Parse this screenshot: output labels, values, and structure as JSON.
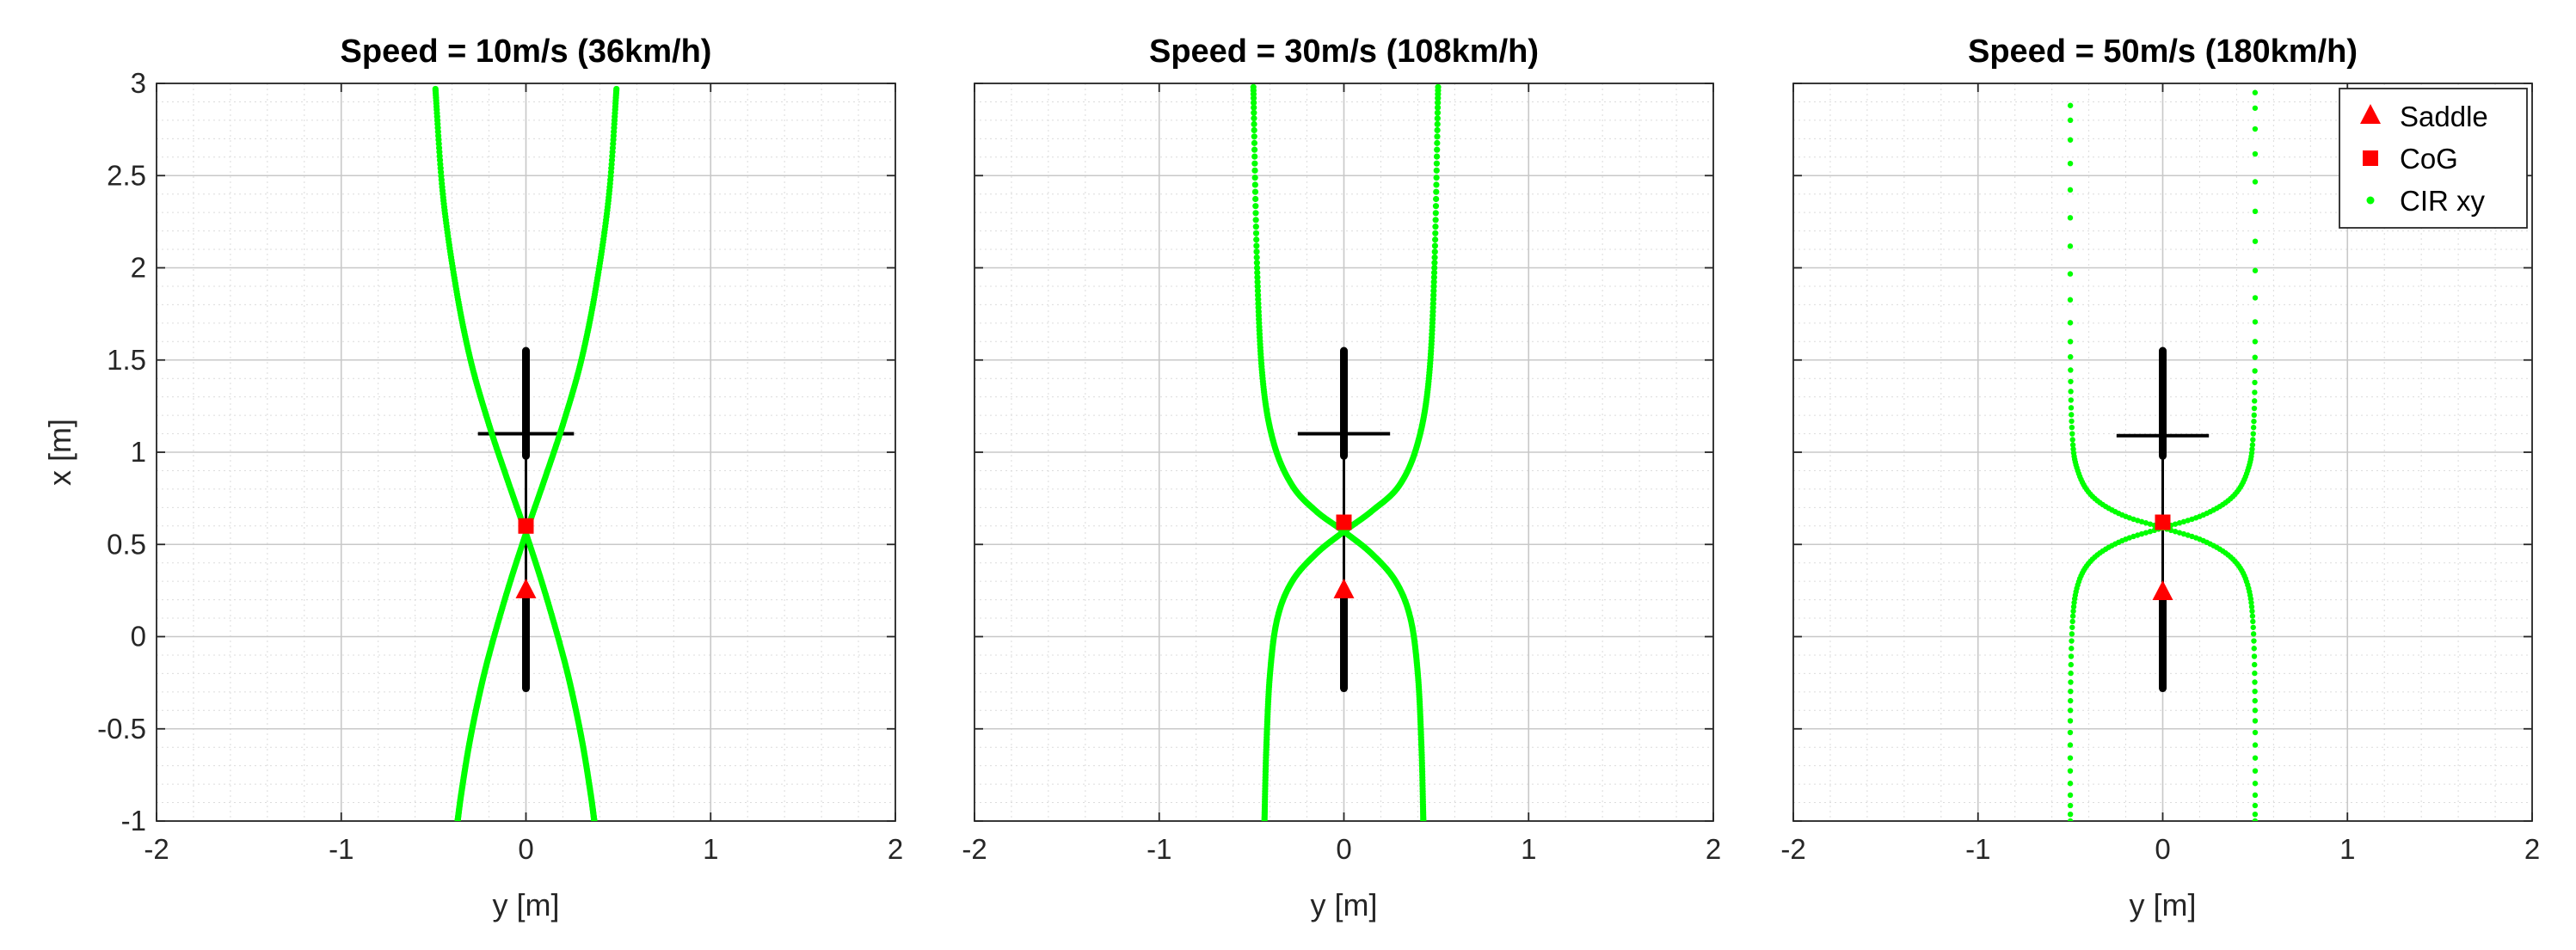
{
  "chart_data": [
    {
      "type": "scatter",
      "title": "Speed = 10m/s (36km/h)",
      "xlabel": "y [m]",
      "ylabel": "x [m]",
      "xlim": [
        -2,
        2
      ],
      "ylim": [
        -1,
        3
      ],
      "xticks": [
        "-2",
        "-1",
        "0",
        "1",
        "2"
      ],
      "yticks": [
        "-1",
        "-0.5",
        "0",
        "0.5",
        "1",
        "1.5",
        "2",
        "2.5",
        "3"
      ],
      "grid": true,
      "minor_grid": true,
      "vehicle": {
        "axis_y": 0,
        "axis_x_range": [
          -0.28,
          1.55
        ],
        "cross_x": 1.1,
        "cross_y_range": [
          -0.26,
          0.26
        ]
      },
      "saddle": {
        "y": 0,
        "x": 0.25
      },
      "cog": {
        "y": 0,
        "x": 0.6
      },
      "cir": {
        "name": "CIR xy",
        "intersection": {
          "y": 0,
          "x": 0.56
        },
        "branches": [
          {
            "y": [
              -0.49,
              -0.45,
              -0.38,
              -0.3,
              -0.2,
              -0.1,
              0,
              0.1,
              0.2,
              0.26,
              0.31,
              0.35,
              0.37
            ],
            "x": [
              2.97,
              2.4,
              1.9,
              1.5,
              1.15,
              0.85,
              0.56,
              0.25,
              -0.1,
              -0.35,
              -0.6,
              -0.85,
              -1.0
            ]
          },
          {
            "y": [
              0.49,
              0.45,
              0.38,
              0.3,
              0.2,
              0.1,
              0,
              -0.1,
              -0.2,
              -0.26,
              -0.31,
              -0.35,
              -0.37
            ],
            "x": [
              2.97,
              2.4,
              1.9,
              1.5,
              1.15,
              0.85,
              0.56,
              0.25,
              -0.1,
              -0.35,
              -0.6,
              -0.85,
              -1.0
            ]
          }
        ]
      }
    },
    {
      "type": "scatter",
      "title": "Speed = 30m/s (108km/h)",
      "xlabel": "y [m]",
      "ylabel": "",
      "xlim": [
        -2,
        2
      ],
      "ylim": [
        -1,
        3
      ],
      "xticks": [
        "-2",
        "-1",
        "0",
        "1",
        "2"
      ],
      "yticks": [],
      "grid": true,
      "minor_grid": true,
      "vehicle": {
        "axis_y": 0,
        "axis_x_range": [
          -0.28,
          1.55
        ],
        "cross_x": 1.1,
        "cross_y_range": [
          -0.25,
          0.25
        ]
      },
      "saddle": {
        "y": 0,
        "x": 0.25
      },
      "cog": {
        "y": 0,
        "x": 0.62
      },
      "cir": {
        "name": "CIR xy",
        "intersection": {
          "y": 0,
          "x": 0.57
        },
        "branches": [
          {
            "y": [
              -0.49,
              -0.47,
              -0.44,
              -0.38,
              -0.28,
              -0.15,
              0,
              0.15,
              0.28,
              0.36,
              0.4,
              0.42,
              0.43
            ],
            "x": [
              2.98,
              2.0,
              1.4,
              1.05,
              0.82,
              0.68,
              0.57,
              0.45,
              0.3,
              0.1,
              -0.2,
              -0.6,
              -1.0
            ]
          },
          {
            "y": [
              0.51,
              0.49,
              0.46,
              0.4,
              0.3,
              0.15,
              0,
              -0.15,
              -0.28,
              -0.36,
              -0.4,
              -0.42,
              -0.43
            ],
            "x": [
              2.98,
              2.0,
              1.4,
              1.05,
              0.82,
              0.68,
              0.57,
              0.45,
              0.3,
              0.1,
              -0.2,
              -0.6,
              -1.0
            ]
          }
        ]
      }
    },
    {
      "type": "scatter",
      "title": "Speed = 50m/s (180km/h)",
      "xlabel": "y [m]",
      "ylabel": "",
      "xlim": [
        -2,
        2
      ],
      "ylim": [
        -1,
        3
      ],
      "xticks": [
        "-2",
        "-1",
        "0",
        "1",
        "2"
      ],
      "yticks": [],
      "grid": true,
      "minor_grid": true,
      "legend": {
        "placement": "top-right",
        "entries": [
          {
            "label": "Saddle",
            "marker": "triangle",
            "color": "#ff0000"
          },
          {
            "label": "CoG",
            "marker": "square",
            "color": "#ff0000"
          },
          {
            "label": "CIR xy",
            "marker": "dot",
            "color": "#00ff00"
          }
        ]
      },
      "vehicle": {
        "axis_y": 0,
        "axis_x_range": [
          -0.28,
          1.55
        ],
        "cross_x": 1.09,
        "cross_y_range": [
          -0.25,
          0.25
        ]
      },
      "saddle": {
        "y": 0,
        "x": 0.24
      },
      "cog": {
        "y": 0,
        "x": 0.62
      },
      "cir": {
        "name": "CIR xy",
        "intersection": {
          "y": 0,
          "x": 0.59
        },
        "branches": [
          {
            "y": [
              -0.5,
              -0.5,
              -0.49,
              -0.46,
              -0.38,
              -0.22,
              0,
              0.22,
              0.38,
              0.46,
              0.49,
              0.5,
              0.5
            ],
            "x": [
              2.88,
              1.6,
              1.1,
              0.9,
              0.76,
              0.66,
              0.59,
              0.52,
              0.42,
              0.28,
              0.05,
              -0.4,
              -1.0
            ]
          },
          {
            "y": [
              0.5,
              0.5,
              0.49,
              0.46,
              0.38,
              0.22,
              0,
              -0.22,
              -0.38,
              -0.46,
              -0.49,
              -0.5,
              -0.5
            ],
            "x": [
              2.95,
              1.6,
              1.1,
              0.9,
              0.76,
              0.66,
              0.59,
              0.52,
              0.42,
              0.28,
              0.05,
              -0.4,
              -1.0
            ]
          }
        ]
      }
    }
  ],
  "colors": {
    "cir": "#00ff00",
    "marker": "#ff0000",
    "vehicle": "#000000",
    "grid": "#dcdcdc",
    "axis": "#262626"
  }
}
